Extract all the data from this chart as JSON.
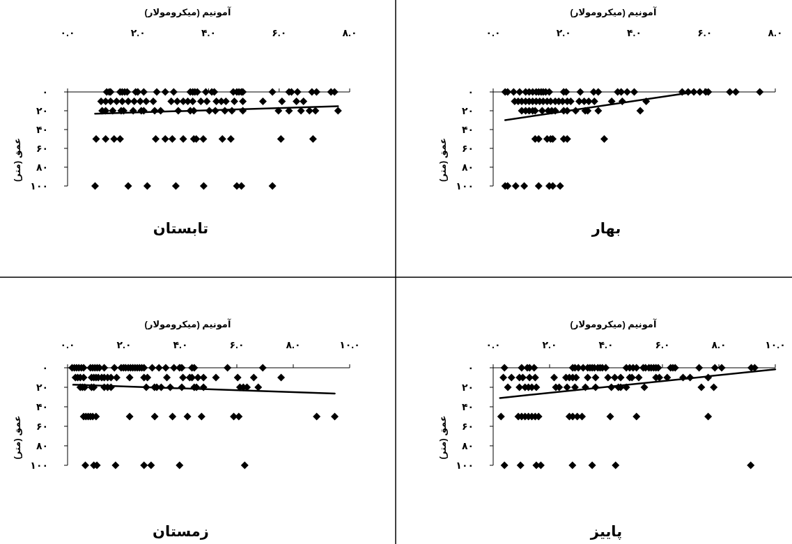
{
  "chart_data": [
    {
      "type": "scatter",
      "title": "بهار",
      "xlabel": "آمونیم (میکرومولار)",
      "ylabel": "عمق (متر)",
      "xlim": [
        0,
        8
      ],
      "xticks": [
        {
          "value": 0,
          "label": "۰.۰"
        },
        {
          "value": 2,
          "label": "۲.۰"
        },
        {
          "value": 4,
          "label": "۴.۰"
        },
        {
          "value": 6,
          "label": "۶.۰"
        },
        {
          "value": 8,
          "label": "۸.۰"
        }
      ],
      "ylim": [
        100,
        0
      ],
      "yticks": [
        {
          "value": 0,
          "label": "۰"
        },
        {
          "value": 20,
          "label": "۲۰"
        },
        {
          "value": 40,
          "label": "۴۰"
        },
        {
          "value": 60,
          "label": "۶۰"
        },
        {
          "value": 80,
          "label": "۸۰"
        },
        {
          "value": 100,
          "label": "۱۰۰"
        }
      ],
      "series": [
        {
          "marker": "diamond",
          "color": "#000000",
          "x": [
            0.34,
            0.41,
            0.58,
            0.75,
            0.92,
            1.02,
            1.12,
            1.22,
            1.29,
            1.36,
            1.42,
            1.49,
            1.59,
            2.0,
            2.07,
            2.47,
            2.85,
            2.98,
            3.53,
            3.63,
            3.8,
            4.0,
            5.36,
            5.53,
            5.69,
            5.86,
            6.03,
            6.1,
            6.71,
            6.88,
            7.56,
            0.61,
            0.71,
            0.81,
            0.92,
            1.02,
            1.12,
            1.22,
            1.32,
            1.42,
            1.53,
            1.63,
            1.76,
            1.86,
            1.97,
            2.1,
            2.2,
            2.44,
            2.58,
            2.71,
            2.87,
            3.36,
            3.66,
            4.34,
            0.81,
            0.92,
            1.02,
            1.12,
            1.19,
            1.39,
            1.56,
            1.66,
            1.76,
            2.0,
            2.1,
            2.34,
            2.61,
            2.68,
            2.98,
            4.17,
            1.19,
            1.29,
            1.53,
            1.63,
            1.69,
            2.0,
            2.1,
            3.15,
            0.34,
            0.41,
            0.64,
            0.88,
            1.29,
            1.59,
            1.69,
            1.9
          ],
          "values": [
            0,
            0,
            0,
            0,
            0,
            0,
            0,
            0,
            0,
            0,
            0,
            0,
            0,
            0,
            0,
            0,
            0,
            0,
            0,
            0,
            0,
            0,
            0,
            0,
            0,
            0,
            0,
            0,
            0,
            0,
            0,
            10,
            10,
            10,
            10,
            10,
            10,
            10,
            10,
            10,
            10,
            10,
            10,
            10,
            10,
            10,
            10,
            10,
            10,
            10,
            10,
            10,
            10,
            10,
            20,
            20,
            20,
            20,
            20,
            20,
            20,
            20,
            20,
            20,
            20,
            20,
            20,
            20,
            20,
            20,
            50,
            50,
            50,
            50,
            50,
            50,
            50,
            50,
            100,
            100,
            100,
            100,
            100,
            100,
            100,
            100
          ]
        },
        {
          "type": "line",
          "color": "#000000",
          "x": [
            0.34,
            5.73
          ],
          "values": [
            30,
            0
          ]
        }
      ]
    },
    {
      "type": "scatter",
      "title": "تابستان",
      "xlabel": "آمونیم (میکرومولار)",
      "ylabel": "عمق (متر)",
      "xlim": [
        0,
        8
      ],
      "xticks": [
        {
          "value": 0,
          "label": "۰.۰"
        },
        {
          "value": 2,
          "label": "۲.۰"
        },
        {
          "value": 4,
          "label": "۴.۰"
        },
        {
          "value": 6,
          "label": "۶.۰"
        },
        {
          "value": 8,
          "label": "۸.۰"
        }
      ],
      "ylim": [
        100,
        0
      ],
      "yticks": [
        {
          "value": 0,
          "label": "۰"
        },
        {
          "value": 20,
          "label": "۲۰"
        },
        {
          "value": 40,
          "label": "۴۰"
        },
        {
          "value": 60,
          "label": "۶۰"
        },
        {
          "value": 80,
          "label": "۸۰"
        },
        {
          "value": 100,
          "label": "۱۰۰"
        }
      ],
      "series": [
        {
          "marker": "diamond",
          "color": "#000000",
          "x": [
            1.11,
            1.18,
            1.22,
            1.49,
            1.55,
            1.62,
            1.69,
            1.93,
            1.99,
            2.16,
            2.53,
            2.77,
            3.01,
            3.48,
            3.55,
            3.61,
            3.68,
            3.92,
            4.09,
            4.16,
            4.7,
            4.8,
            4.86,
            4.93,
            4.97,
            5.81,
            6.28,
            6.35,
            6.52,
            6.93,
            7.06,
            7.47,
            7.57,
            0.95,
            1.08,
            1.22,
            1.39,
            1.55,
            1.72,
            1.89,
            2.06,
            2.23,
            2.43,
            2.94,
            3.11,
            3.28,
            3.41,
            3.55,
            3.78,
            3.95,
            4.22,
            4.36,
            4.49,
            4.73,
            4.97,
            5.54,
            6.08,
            6.49,
            6.69,
            0.98,
            1.08,
            1.28,
            1.52,
            1.59,
            1.86,
            2.09,
            2.16,
            2.47,
            2.64,
            3.14,
            3.48,
            3.58,
            4.02,
            4.19,
            4.46,
            4.66,
            4.97,
            5.98,
            6.28,
            6.62,
            6.86,
            7.03,
            7.67,
            0.81,
            1.08,
            1.32,
            1.49,
            2.5,
            2.77,
            2.97,
            3.28,
            3.58,
            3.65,
            3.85,
            4.39,
            4.63,
            6.05,
            6.96,
            0.78,
            1.72,
            2.26,
            3.07,
            3.86,
            4.8,
            4.93,
            5.81
          ],
          "values": [
            0,
            0,
            0,
            0,
            0,
            0,
            0,
            0,
            0,
            0,
            0,
            0,
            0,
            0,
            0,
            0,
            0,
            0,
            0,
            0,
            0,
            0,
            0,
            0,
            0,
            0,
            0,
            0,
            0,
            0,
            0,
            0,
            0,
            10,
            10,
            10,
            10,
            10,
            10,
            10,
            10,
            10,
            10,
            10,
            10,
            10,
            10,
            10,
            10,
            10,
            10,
            10,
            10,
            10,
            10,
            10,
            10,
            10,
            10,
            20,
            20,
            20,
            20,
            20,
            20,
            20,
            20,
            20,
            20,
            20,
            20,
            20,
            20,
            20,
            20,
            20,
            20,
            20,
            20,
            20,
            20,
            20,
            20,
            50,
            50,
            50,
            50,
            50,
            50,
            50,
            50,
            50,
            50,
            50,
            50,
            50,
            50,
            50,
            100,
            100,
            100,
            100,
            100,
            100,
            100,
            100
          ]
        },
        {
          "type": "line",
          "color": "#000000",
          "x": [
            0.78,
            7.67
          ],
          "values": [
            23.2,
            15.1
          ]
        }
      ]
    },
    {
      "type": "scatter",
      "title": "پاییز",
      "xlabel": "آمونیم (میکرومولار)",
      "ylabel": "عمق (متر)",
      "xlim": [
        0,
        10
      ],
      "xticks": [
        {
          "value": 0,
          "label": "۰.۰"
        },
        {
          "value": 2,
          "label": "۲.۰"
        },
        {
          "value": 4,
          "label": "۴.۰"
        },
        {
          "value": 6,
          "label": "۶.۰"
        },
        {
          "value": 8,
          "label": "۸.۰"
        },
        {
          "value": 10,
          "label": "۱۰.۰"
        }
      ],
      "ylim": [
        100,
        0
      ],
      "yticks": [
        {
          "value": 0,
          "label": "۰"
        },
        {
          "value": 20,
          "label": "۲۰"
        },
        {
          "value": 40,
          "label": "۴۰"
        },
        {
          "value": 60,
          "label": "۶۰"
        },
        {
          "value": 80,
          "label": "۸۰"
        },
        {
          "value": 100,
          "label": "۱۰۰"
        }
      ],
      "series": [
        {
          "marker": "diamond",
          "color": "#000000",
          "x": [
            0.4,
            1.01,
            1.21,
            1.29,
            1.45,
            2.82,
            2.9,
            3.02,
            3.19,
            3.35,
            3.43,
            3.51,
            3.59,
            3.71,
            3.79,
            3.87,
            3.99,
            4.72,
            4.84,
            4.96,
            5.08,
            5.32,
            5.4,
            5.52,
            5.6,
            5.69,
            5.77,
            5.85,
            6.29,
            6.37,
            6.45,
            7.3,
            7.86,
            8.1,
            9.15,
            9.27,
            0.36,
            0.65,
            0.93,
            1.05,
            1.29,
            1.49,
            2.16,
            2.58,
            2.7,
            2.82,
            2.94,
            3.35,
            3.63,
            4.07,
            4.31,
            4.52,
            4.84,
            4.92,
            5.16,
            5.77,
            5.89,
            6.17,
            6.73,
            6.98,
            7.62,
            0.52,
            0.93,
            1.13,
            1.25,
            1.37,
            1.53,
            2.22,
            2.34,
            2.62,
            2.9,
            3.27,
            3.63,
            4.19,
            4.44,
            4.52,
            4.72,
            5.36,
            7.38,
            7.82,
            0.28,
            0.89,
            1.01,
            1.13,
            1.25,
            1.37,
            1.49,
            1.61,
            2.7,
            2.82,
            2.98,
            3.15,
            4.15,
            5.08,
            7.62,
            0.4,
            0.97,
            1.53,
            1.69,
            2.81,
            3.51,
            4.34,
            9.13
          ],
          "values": [
            0,
            0,
            0,
            0,
            0,
            0,
            0,
            0,
            0,
            0,
            0,
            0,
            0,
            0,
            0,
            0,
            0,
            0,
            0,
            0,
            0,
            0,
            0,
            0,
            0,
            0,
            0,
            0,
            0,
            0,
            0,
            0,
            0,
            0,
            0,
            0,
            10,
            10,
            10,
            10,
            10,
            10,
            10,
            10,
            10,
            10,
            10,
            10,
            10,
            10,
            10,
            10,
            10,
            10,
            10,
            10,
            10,
            10,
            10,
            10,
            10,
            20,
            20,
            20,
            20,
            20,
            20,
            20,
            20,
            20,
            20,
            20,
            20,
            20,
            20,
            20,
            20,
            20,
            20,
            20,
            50,
            50,
            50,
            50,
            50,
            50,
            50,
            50,
            50,
            50,
            50,
            50,
            50,
            50,
            50,
            100,
            100,
            100,
            100,
            100,
            100,
            100,
            100
          ]
        },
        {
          "type": "line",
          "color": "#000000",
          "x": [
            0.24,
            10
          ],
          "values": [
            31,
            1.6
          ]
        }
      ]
    },
    {
      "type": "scatter",
      "title": "زمستان",
      "xlabel": "آمونیم (میکرومولار)",
      "ylabel": "عمق (متر)",
      "xlim": [
        0,
        10
      ],
      "xticks": [
        {
          "value": 0,
          "label": "۰.۰"
        },
        {
          "value": 2,
          "label": "۲.۰"
        },
        {
          "value": 4,
          "label": "۴.۰"
        },
        {
          "value": 6,
          "label": "۶.۰"
        },
        {
          "value": 8,
          "label": "۸.۰"
        },
        {
          "value": 10,
          "label": "۱۰.۰"
        }
      ],
      "ylim": [
        100,
        0
      ],
      "yticks": [
        {
          "value": 0,
          "label": "۰"
        },
        {
          "value": 20,
          "label": "۲۰"
        },
        {
          "value": 40,
          "label": "۴۰"
        },
        {
          "value": 60,
          "label": "۶۰"
        },
        {
          "value": 80,
          "label": "۸۰"
        },
        {
          "value": 100,
          "label": "۱۰۰"
        }
      ],
      "series": [
        {
          "marker": "diamond",
          "color": "#000000",
          "x": [
            0.16,
            0.24,
            0.32,
            0.4,
            0.49,
            0.57,
            0.81,
            0.89,
            0.97,
            1.05,
            1.13,
            1.3,
            1.66,
            1.9,
            1.98,
            2.06,
            2.15,
            2.23,
            2.31,
            2.39,
            2.47,
            2.55,
            2.63,
            2.71,
            3.0,
            3.24,
            3.48,
            3.77,
            3.97,
            4.05,
            4.41,
            4.49,
            5.67,
            6.92,
            0.28,
            0.36,
            0.45,
            0.57,
            0.85,
            0.93,
            1.01,
            1.09,
            1.21,
            1.3,
            1.42,
            1.54,
            1.74,
            2.2,
            2.71,
            2.83,
            3.52,
            4.09,
            4.33,
            4.41,
            4.62,
            4.82,
            5.26,
            6.03,
            6.6,
            7.57,
            0.45,
            0.53,
            0.61,
            0.85,
            0.93,
            1.3,
            1.42,
            1.54,
            2.79,
            3.08,
            3.16,
            3.32,
            3.64,
            4.05,
            4.49,
            4.57,
            4.82,
            6.11,
            6.23,
            6.36,
            6.76,
            0.57,
            0.65,
            0.73,
            0.81,
            0.89,
            1.01,
            2.2,
            3.09,
            3.72,
            4.25,
            4.75,
            5.89,
            6.07,
            8.83,
            9.47,
            0.63,
            0.93,
            1.04,
            1.7,
            2.71,
            2.96,
            3.97,
            6.28
          ],
          "values": [
            0,
            0,
            0,
            0,
            0,
            0,
            0,
            0,
            0,
            0,
            0,
            0,
            0,
            0,
            0,
            0,
            0,
            0,
            0,
            0,
            0,
            0,
            0,
            0,
            0,
            0,
            0,
            0,
            0,
            0,
            0,
            0,
            0,
            0,
            10,
            10,
            10,
            10,
            10,
            10,
            10,
            10,
            10,
            10,
            10,
            10,
            10,
            10,
            10,
            10,
            10,
            10,
            10,
            10,
            10,
            10,
            10,
            10,
            10,
            10,
            20,
            20,
            20,
            20,
            20,
            20,
            20,
            20,
            20,
            20,
            20,
            20,
            20,
            20,
            20,
            20,
            20,
            20,
            20,
            20,
            20,
            50,
            50,
            50,
            50,
            50,
            50,
            50,
            50,
            50,
            50,
            50,
            50,
            50,
            50,
            50,
            100,
            100,
            100,
            100,
            100,
            100,
            100,
            100
          ]
        },
        {
          "type": "line",
          "color": "#000000",
          "x": [
            0.2,
            9.47
          ],
          "values": [
            17.4,
            26.4
          ]
        }
      ]
    }
  ]
}
